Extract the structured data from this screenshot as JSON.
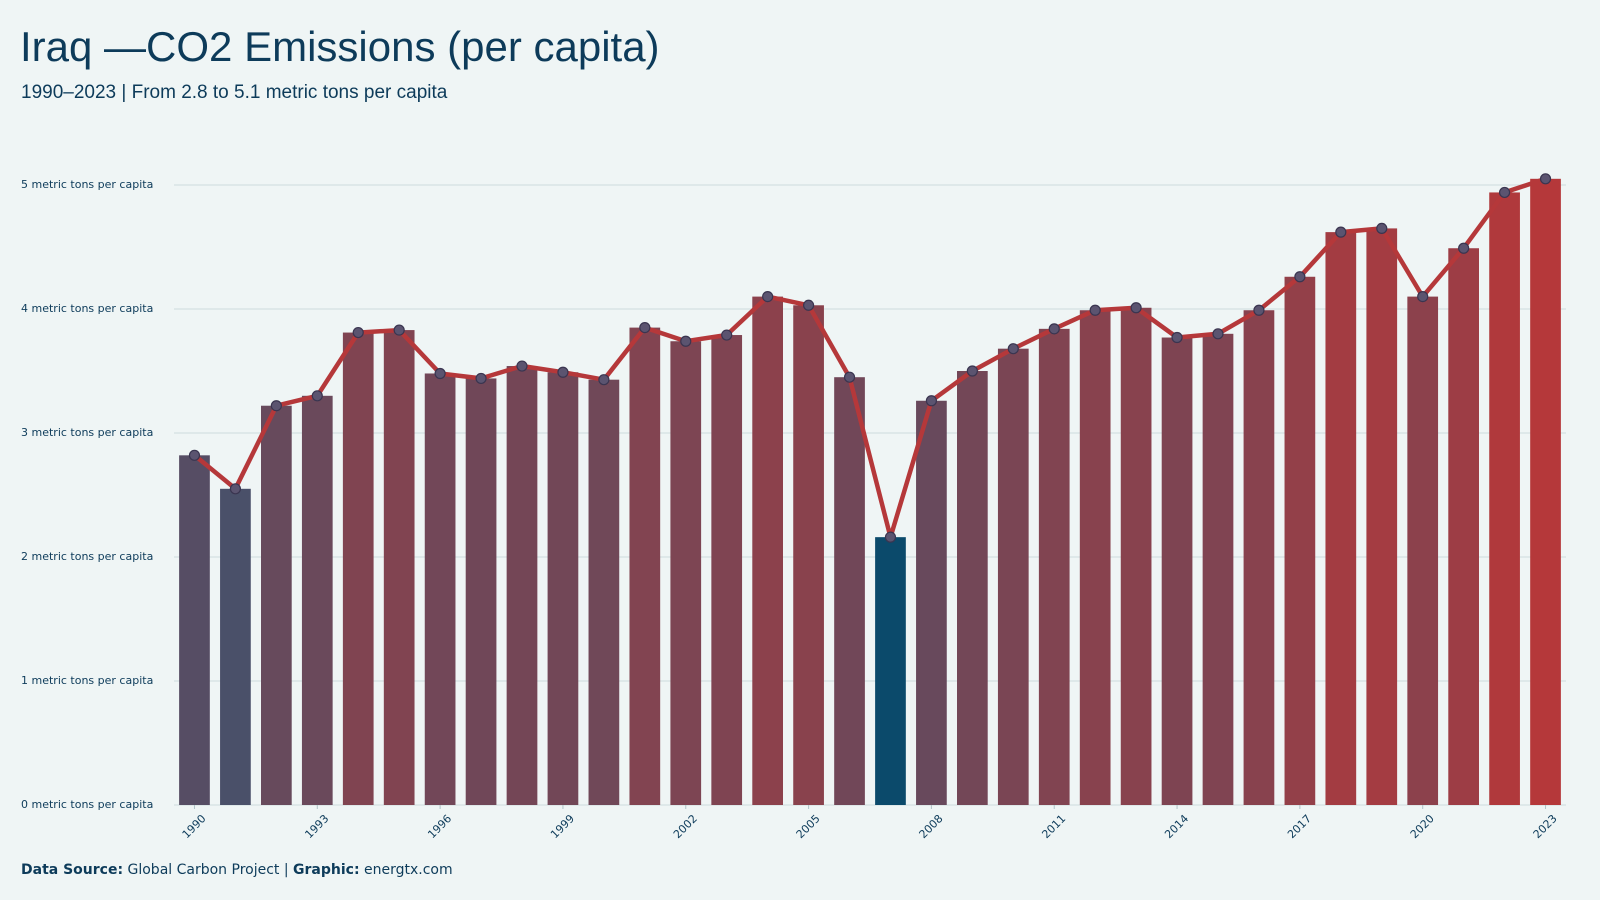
{
  "chart_data": {
    "type": "bar_line",
    "title": "Iraq —CO2 Emissions (per capita)",
    "subtitle": "1990–2023 | From 2.8 to 5.1 metric tons per capita",
    "x": [
      1990,
      1991,
      1992,
      1993,
      1994,
      1995,
      1996,
      1997,
      1998,
      1999,
      2000,
      2001,
      2002,
      2003,
      2004,
      2005,
      2006,
      2007,
      2008,
      2009,
      2010,
      2011,
      2012,
      2013,
      2014,
      2015,
      2016,
      2017,
      2018,
      2019,
      2020,
      2021,
      2022,
      2023
    ],
    "values": [
      2.82,
      2.55,
      3.22,
      3.3,
      3.81,
      3.83,
      3.48,
      3.44,
      3.54,
      3.49,
      3.43,
      3.85,
      3.74,
      3.79,
      4.1,
      4.03,
      3.45,
      2.16,
      3.26,
      3.5,
      3.68,
      3.84,
      3.99,
      4.01,
      3.77,
      3.8,
      3.99,
      4.26,
      4.62,
      4.65,
      4.1,
      4.49,
      4.94,
      5.05
    ],
    "xlim": [
      1989.5,
      2023.5
    ],
    "xticks": [
      1990,
      1993,
      1996,
      1999,
      2002,
      2005,
      2008,
      2011,
      2014,
      2017,
      2020,
      2023
    ],
    "ylim": [
      0,
      5
    ],
    "yticks": [
      {
        "value": 0,
        "label": "0 metric tons per capita"
      },
      {
        "value": 1,
        "label": "1 metric tons per capita"
      },
      {
        "value": 2,
        "label": "2 metric tons per capita"
      },
      {
        "value": 3,
        "label": "3 metric tons per capita"
      },
      {
        "value": 4,
        "label": "4 metric tons per capita"
      },
      {
        "value": 5,
        "label": "5 metric tons per capita"
      }
    ],
    "grid": true,
    "color_low": "#4a5069",
    "color_high": "#b5383a",
    "highlight_color": "#0b4a6b",
    "line_color": "#b5383a",
    "marker_color": "#5b5470",
    "footer": {
      "source_label": "Data Source:",
      "source": "Global Carbon Project |",
      "graphic_label": "Graphic:",
      "graphic": "energtx.com"
    }
  }
}
